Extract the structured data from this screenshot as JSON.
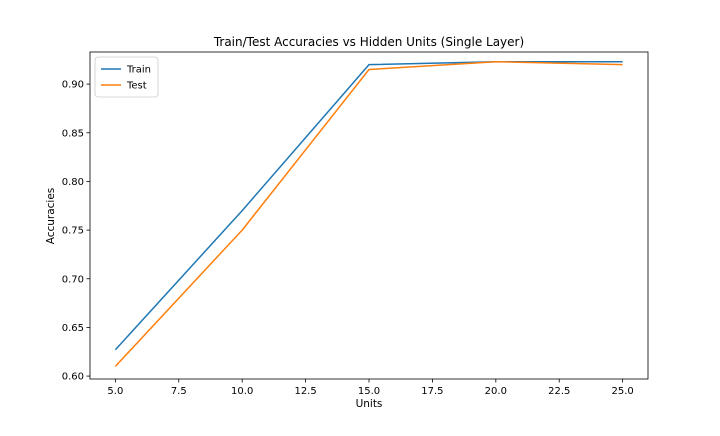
{
  "chart_data": {
    "type": "line",
    "title": "Train/Test Accuracies vs Hidden Units (Single Layer)",
    "xlabel": "Units",
    "ylabel": "Accuracies",
    "xlim": [
      4.0,
      26.0
    ],
    "ylim": [
      0.597,
      0.933
    ],
    "xticks": [
      5.0,
      7.5,
      10.0,
      12.5,
      15.0,
      17.5,
      20.0,
      22.5,
      25.0
    ],
    "xtick_labels": [
      "5.0",
      "7.5",
      "10.0",
      "12.5",
      "15.0",
      "17.5",
      "20.0",
      "22.5",
      "25.0"
    ],
    "yticks": [
      0.6,
      0.65,
      0.7,
      0.75,
      0.8,
      0.85,
      0.9
    ],
    "ytick_labels": [
      "0.60",
      "0.65",
      "0.70",
      "0.75",
      "0.80",
      "0.85",
      "0.90"
    ],
    "x": [
      5,
      10,
      15,
      20,
      25
    ],
    "series": [
      {
        "name": "Train",
        "values": [
          0.627,
          0.77,
          0.92,
          0.923,
          0.923
        ],
        "color": "#1f77b4"
      },
      {
        "name": "Test",
        "values": [
          0.61,
          0.75,
          0.915,
          0.923,
          0.92
        ],
        "color": "#ff7f0e"
      }
    ],
    "grid": false,
    "legend_position": "top-left"
  }
}
